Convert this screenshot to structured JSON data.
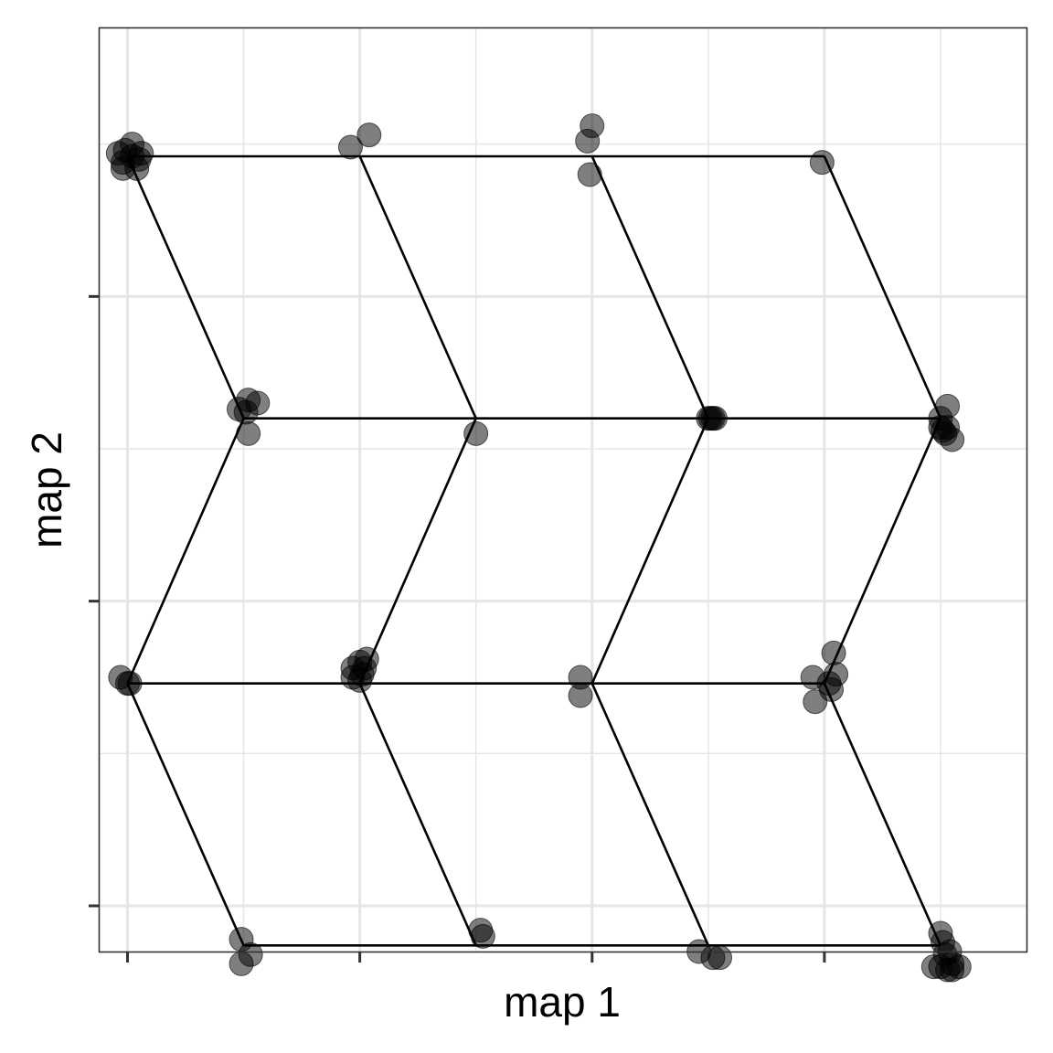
{
  "chart_data": {
    "type": "scatter",
    "title": "",
    "xlabel": "map 1",
    "ylabel": "map 2",
    "xlim": [
      -0.12,
      3.87
    ],
    "ylim": [
      -0.15,
      2.88
    ],
    "grid": true,
    "tick_labels_shown": false,
    "x_ticks": [
      0,
      1,
      2,
      3
    ],
    "y_ticks": [
      0,
      1,
      2
    ],
    "colors": {
      "points": "#000000",
      "point_alpha": 0.5,
      "lines": "#000000",
      "grid": "#e6e6e6",
      "panel_border": "#333333"
    },
    "lattice_nodes": [
      {
        "id": "r0c0",
        "x": 0.5,
        "y": -0.13
      },
      {
        "id": "r0c1",
        "x": 1.5,
        "y": -0.13
      },
      {
        "id": "r0c2",
        "x": 2.5,
        "y": -0.13
      },
      {
        "id": "r0c3",
        "x": 3.5,
        "y": -0.13
      },
      {
        "id": "r1c0",
        "x": 0.0,
        "y": 0.73
      },
      {
        "id": "r1c1",
        "x": 1.0,
        "y": 0.73
      },
      {
        "id": "r1c2",
        "x": 2.0,
        "y": 0.73
      },
      {
        "id": "r1c3",
        "x": 3.0,
        "y": 0.73
      },
      {
        "id": "r2c0",
        "x": 0.5,
        "y": 1.6
      },
      {
        "id": "r2c1",
        "x": 1.5,
        "y": 1.6
      },
      {
        "id": "r2c2",
        "x": 2.5,
        "y": 1.6
      },
      {
        "id": "r2c3",
        "x": 3.5,
        "y": 1.6
      },
      {
        "id": "r3c0",
        "x": 0.0,
        "y": 2.46
      },
      {
        "id": "r3c1",
        "x": 1.0,
        "y": 2.46
      },
      {
        "id": "r3c2",
        "x": 2.0,
        "y": 2.46
      },
      {
        "id": "r3c3",
        "x": 3.0,
        "y": 2.46
      }
    ],
    "lattice_edges": [
      [
        "r0c0",
        "r0c1"
      ],
      [
        "r0c1",
        "r0c2"
      ],
      [
        "r0c2",
        "r0c3"
      ],
      [
        "r1c0",
        "r1c1"
      ],
      [
        "r1c1",
        "r1c2"
      ],
      [
        "r1c2",
        "r1c3"
      ],
      [
        "r2c0",
        "r2c1"
      ],
      [
        "r2c1",
        "r2c2"
      ],
      [
        "r2c2",
        "r2c3"
      ],
      [
        "r3c0",
        "r3c1"
      ],
      [
        "r3c1",
        "r3c2"
      ],
      [
        "r3c2",
        "r3c3"
      ],
      [
        "r0c0",
        "r1c0"
      ],
      [
        "r0c1",
        "r1c1"
      ],
      [
        "r0c2",
        "r1c2"
      ],
      [
        "r0c3",
        "r1c3"
      ],
      [
        "r1c0",
        "r2c0"
      ],
      [
        "r1c1",
        "r2c1"
      ],
      [
        "r1c2",
        "r2c2"
      ],
      [
        "r1c3",
        "r2c3"
      ],
      [
        "r2c0",
        "r3c0"
      ],
      [
        "r2c1",
        "r3c1"
      ],
      [
        "r2c2",
        "r3c2"
      ],
      [
        "r2c3",
        "r3c3"
      ]
    ],
    "points": [
      {
        "x": -0.04,
        "y": 2.47
      },
      {
        "x": -0.02,
        "y": 2.44
      },
      {
        "x": 0.02,
        "y": 2.46
      },
      {
        "x": -0.02,
        "y": 2.42
      },
      {
        "x": 0.05,
        "y": 2.45
      },
      {
        "x": -0.01,
        "y": 2.48
      },
      {
        "x": 0.02,
        "y": 2.5
      },
      {
        "x": 0.04,
        "y": 2.42
      },
      {
        "x": 0.06,
        "y": 2.47
      },
      {
        "x": 0.96,
        "y": 2.49
      },
      {
        "x": 1.04,
        "y": 2.53
      },
      {
        "x": 2.0,
        "y": 2.56
      },
      {
        "x": 1.98,
        "y": 2.51
      },
      {
        "x": 1.99,
        "y": 2.4
      },
      {
        "x": 2.99,
        "y": 2.44
      },
      {
        "x": 0.48,
        "y": 1.63
      },
      {
        "x": 0.52,
        "y": 1.66
      },
      {
        "x": 0.51,
        "y": 1.62
      },
      {
        "x": 0.52,
        "y": 1.55
      },
      {
        "x": 0.56,
        "y": 1.65
      },
      {
        "x": 1.5,
        "y": 1.55
      },
      {
        "x": 2.5,
        "y": 1.6
      },
      {
        "x": 2.52,
        "y": 1.6
      },
      {
        "x": 2.51,
        "y": 1.6
      },
      {
        "x": 2.53,
        "y": 1.6
      },
      {
        "x": 3.5,
        "y": 1.6
      },
      {
        "x": 3.53,
        "y": 1.64
      },
      {
        "x": 3.5,
        "y": 1.57
      },
      {
        "x": 3.52,
        "y": 1.55
      },
      {
        "x": 3.53,
        "y": 1.57
      },
      {
        "x": 3.55,
        "y": 1.53
      },
      {
        "x": 3.51,
        "y": 1.56
      },
      {
        "x": -0.03,
        "y": 0.75
      },
      {
        "x": 0.0,
        "y": 0.73
      },
      {
        "x": 0.01,
        "y": 0.73
      },
      {
        "x": 0.97,
        "y": 0.78
      },
      {
        "x": 1.0,
        "y": 0.8
      },
      {
        "x": 1.03,
        "y": 0.81
      },
      {
        "x": 0.97,
        "y": 0.75
      },
      {
        "x": 1.0,
        "y": 0.74
      },
      {
        "x": 1.01,
        "y": 0.76
      },
      {
        "x": 1.02,
        "y": 0.78
      },
      {
        "x": 1.95,
        "y": 0.75
      },
      {
        "x": 1.95,
        "y": 0.69
      },
      {
        "x": 2.95,
        "y": 0.75
      },
      {
        "x": 3.04,
        "y": 0.83
      },
      {
        "x": 3.05,
        "y": 0.76
      },
      {
        "x": 3.02,
        "y": 0.73
      },
      {
        "x": 2.96,
        "y": 0.67
      },
      {
        "x": 3.03,
        "y": 0.71
      },
      {
        "x": 0.49,
        "y": -0.11
      },
      {
        "x": 0.53,
        "y": -0.16
      },
      {
        "x": 0.49,
        "y": -0.19
      },
      {
        "x": 1.52,
        "y": -0.08
      },
      {
        "x": 1.53,
        "y": -0.1
      },
      {
        "x": 2.46,
        "y": -0.15
      },
      {
        "x": 2.52,
        "y": -0.17
      },
      {
        "x": 2.55,
        "y": -0.17
      },
      {
        "x": 3.5,
        "y": -0.09
      },
      {
        "x": 3.51,
        "y": -0.12
      },
      {
        "x": 3.52,
        "y": -0.16
      },
      {
        "x": 3.54,
        "y": -0.15
      },
      {
        "x": 3.55,
        "y": -0.19
      },
      {
        "x": 3.47,
        "y": -0.2
      },
      {
        "x": 3.5,
        "y": -0.2
      },
      {
        "x": 3.53,
        "y": -0.21
      },
      {
        "x": 3.55,
        "y": -0.21
      },
      {
        "x": 3.58,
        "y": -0.2
      }
    ]
  }
}
